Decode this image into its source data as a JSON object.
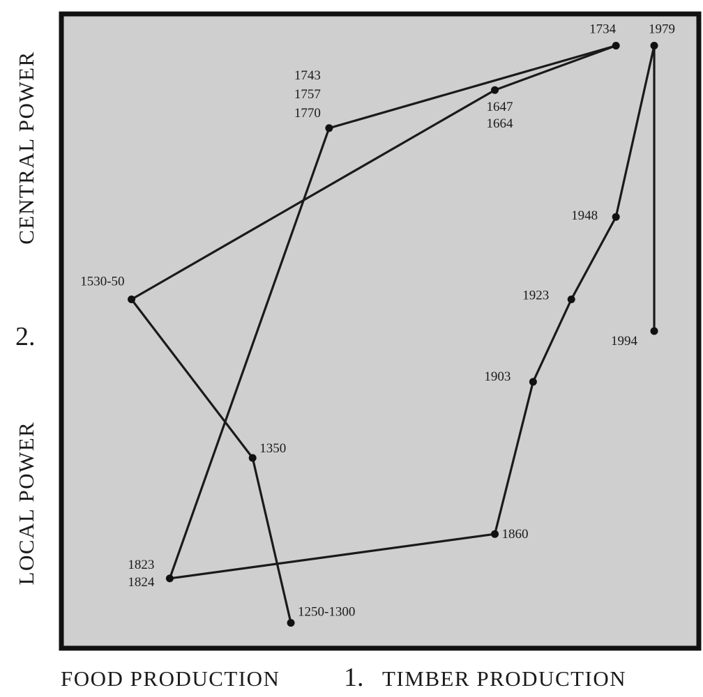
{
  "x_axis": {
    "left_label": "FOOD PRODUCTION",
    "number": "1.",
    "right_label": "TIMBER PRODUCTION"
  },
  "y_axis": {
    "top_label": "CENTRAL POWER",
    "number": "2.",
    "bottom_label": "LOCAL POWER"
  },
  "points": [
    {
      "id": "p1250",
      "label": [
        "1250-1300"
      ],
      "x": 0.36,
      "y": 0.04
    },
    {
      "id": "p1350",
      "label": [
        "1350"
      ],
      "x": 0.3,
      "y": 0.3
    },
    {
      "id": "p1530",
      "label": [
        "1530-50"
      ],
      "x": 0.11,
      "y": 0.55
    },
    {
      "id": "p1647",
      "label": [
        "1647",
        "1664"
      ],
      "x": 0.68,
      "y": 0.88
    },
    {
      "id": "p1734",
      "label": [
        "1734"
      ],
      "x": 0.87,
      "y": 0.95
    },
    {
      "id": "p1743",
      "label": [
        "1743",
        "1757",
        "1770"
      ],
      "x": 0.42,
      "y": 0.82
    },
    {
      "id": "p1823",
      "label": [
        "1823",
        "1824"
      ],
      "x": 0.17,
      "y": 0.11
    },
    {
      "id": "p1860",
      "label": [
        "1860"
      ],
      "x": 0.68,
      "y": 0.18
    },
    {
      "id": "p1903",
      "label": [
        "1903"
      ],
      "x": 0.74,
      "y": 0.42
    },
    {
      "id": "p1923",
      "label": [
        "1923"
      ],
      "x": 0.8,
      "y": 0.55
    },
    {
      "id": "p1948",
      "label": [
        "1948"
      ],
      "x": 0.87,
      "y": 0.68
    },
    {
      "id": "p1979",
      "label": [
        "1979"
      ],
      "x": 0.93,
      "y": 0.95
    },
    {
      "id": "p1994",
      "label": [
        "1994"
      ],
      "x": 0.93,
      "y": 0.5
    }
  ],
  "path_order": [
    "p1250",
    "p1350",
    "p1530",
    "p1647",
    "p1734",
    "p1743",
    "p1823",
    "p1860",
    "p1903",
    "p1923",
    "p1948",
    "p1979",
    "p1994"
  ]
}
